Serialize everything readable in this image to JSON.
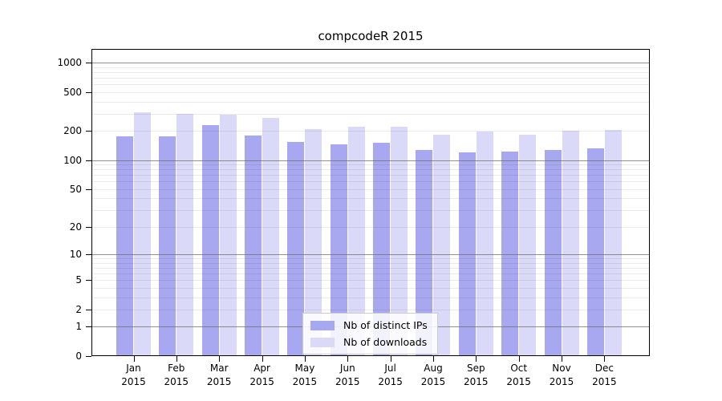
{
  "chart_data": {
    "type": "bar",
    "title": "compcodeR 2015",
    "year": "2015",
    "categories": [
      "Jan",
      "Feb",
      "Mar",
      "Apr",
      "May",
      "Jun",
      "Jul",
      "Aug",
      "Sep",
      "Oct",
      "Nov",
      "Dec"
    ],
    "series": [
      {
        "name": "Nb of distinct IPs",
        "color": "#A8A8F0",
        "values": [
          174,
          174,
          231,
          179,
          153,
          146,
          150,
          128,
          120,
          123,
          128,
          132
        ]
      },
      {
        "name": "Nb of downloads",
        "color": "#DADAF8",
        "values": [
          310,
          299,
          295,
          270,
          210,
          222,
          220,
          182,
          196,
          182,
          200,
          204
        ]
      }
    ],
    "yscale": "log10(1+x)",
    "yticks": [
      0,
      1,
      2,
      5,
      10,
      20,
      50,
      100,
      200,
      500,
      1000
    ],
    "ylim": [
      0,
      1400
    ],
    "grid": true,
    "legend_position": "inside-bottom-center",
    "colors": {
      "axis": "#000000",
      "major_grid": "#6e6e6e",
      "minor_grid": "#e8e8e8",
      "background": "#ffffff"
    }
  }
}
